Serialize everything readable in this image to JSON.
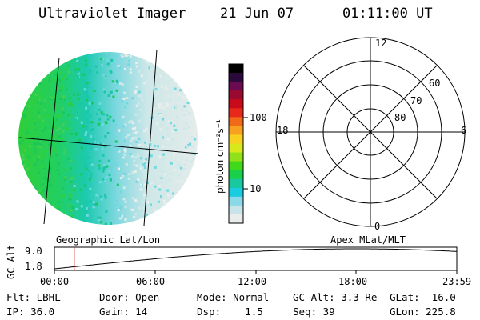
{
  "header": {
    "title": "Ultraviolet Imager",
    "date": "21 Jun 07",
    "time": "01:11:00 UT"
  },
  "colorbar": {
    "unit_label": "photon cm⁻²s⁻¹",
    "ticks": [
      "100",
      "10"
    ],
    "colors": [
      "#000000",
      "#2a0a3a",
      "#6a0a50",
      "#9a0a30",
      "#c80a1a",
      "#e8281a",
      "#f06a1a",
      "#f8a020",
      "#f8d020",
      "#d8e81a",
      "#90e01a",
      "#40d81a",
      "#1ad04a",
      "#1ac8a0",
      "#1acce0",
      "#8ad8e8",
      "#c8e4e8",
      "#e8eceb"
    ]
  },
  "labels": {
    "geo": "Geographic Lat/Lon",
    "apex": "Apex MLat/MLT",
    "gc_alt_axis": "GC Alt"
  },
  "polar": {
    "mlt_labels": [
      "12",
      "18",
      "6",
      "0"
    ],
    "lat_labels": [
      "60",
      "70",
      "80"
    ]
  },
  "timeline": {
    "y_ticks": [
      "9.0",
      "1.8"
    ],
    "x_ticks": [
      "00:00",
      "06:00",
      "12:00",
      "18:00",
      "23:59"
    ],
    "current_time_hours": 1.1833,
    "marker_color": "#d01010"
  },
  "footer": {
    "flt": "Flt: LBHL",
    "ip": "IP: 36.0",
    "door": "Door: Open",
    "gain": "Gain: 14",
    "mode": "Mode: Normal",
    "dsp": "Dsp:    1.5",
    "gc_alt": "GC Alt: 3.3 Re",
    "seq": "Seq: 39",
    "glat": "GLat: -16.0",
    "glon": "GLon: 225.8"
  }
}
